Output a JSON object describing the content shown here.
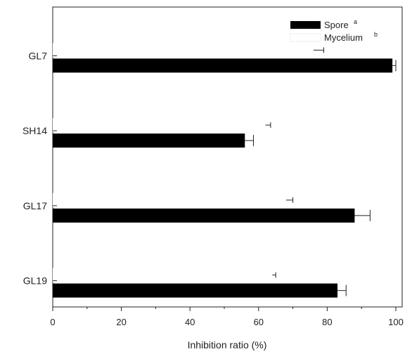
{
  "chart_data": {
    "type": "bar",
    "orientation": "horizontal",
    "categories": [
      "GL7",
      "SH14",
      "GL17",
      "GL19"
    ],
    "series": [
      {
        "name": "Spore",
        "superscript": "a",
        "color": "#000000",
        "values": [
          99,
          56,
          88,
          83
        ],
        "errors": [
          1,
          2.5,
          4.5,
          2.5
        ]
      },
      {
        "name": "Mycelium",
        "superscript": "b",
        "color": "#ffffff",
        "values": [
          76,
          62,
          68,
          64
        ],
        "errors": [
          3,
          1.5,
          2,
          1
        ]
      }
    ],
    "xlabel": "Inhibition ratio (%)",
    "ylabel": "",
    "xlim": [
      0,
      102
    ],
    "xticks": [
      0,
      20,
      40,
      60,
      80,
      100
    ],
    "grid": false,
    "legend": "top-right"
  }
}
